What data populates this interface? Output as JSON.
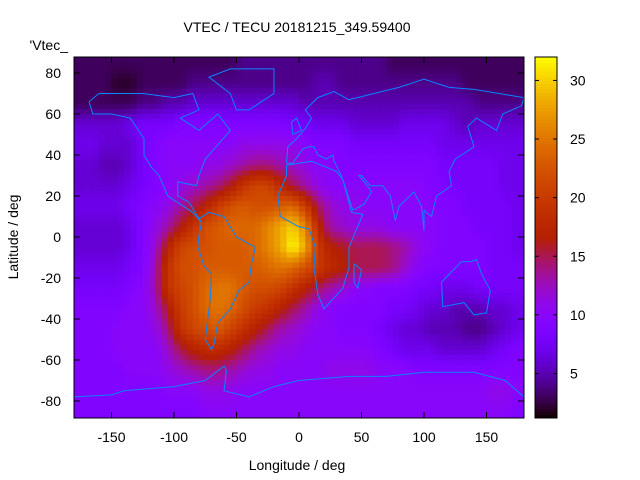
{
  "chart_data": {
    "type": "heatmap",
    "title": "VTEC / TECU 20181215_349.59400",
    "xlabel": "Longitude / deg",
    "ylabel": "Latitude / deg",
    "legend_label": "'Vtec_",
    "legend_position": "top-left",
    "xlim": [
      -180,
      180
    ],
    "ylim": [
      -88,
      88
    ],
    "cbrange": [
      1.2,
      32
    ],
    "xticks": [
      "-150",
      "-100",
      "-50",
      "0",
      "50",
      "100",
      "150"
    ],
    "xtick_values": [
      -150,
      -100,
      -50,
      0,
      50,
      100,
      150
    ],
    "yticks": [
      "80",
      "60",
      "40",
      "20",
      "0",
      "-20",
      "-40",
      "-60",
      "-80"
    ],
    "ytick_values": [
      80,
      60,
      40,
      20,
      0,
      -20,
      -40,
      -60,
      -80
    ],
    "cbticks": [
      "30",
      "25",
      "20",
      "15",
      "10",
      "5"
    ],
    "cbtick_values": [
      30,
      25,
      20,
      15,
      10,
      5
    ],
    "grid_lon": [
      -175,
      -165,
      -155,
      -145,
      -135,
      -125,
      -115,
      -105,
      -95,
      -85,
      -75,
      -65,
      -55,
      -45,
      -35,
      -25,
      -15,
      -5,
      5,
      15,
      25,
      35,
      45,
      55,
      65,
      75,
      85,
      95,
      105,
      115,
      125,
      135,
      145,
      155,
      165,
      175
    ],
    "grid_lat": [
      85,
      75,
      65,
      55,
      45,
      35,
      25,
      15,
      5,
      -5,
      -15,
      -25,
      -35,
      -45,
      -55,
      -65,
      -75,
      -85
    ],
    "values": [
      [
        3,
        3,
        3,
        3,
        3,
        3,
        3,
        3,
        3,
        3,
        3,
        3,
        3,
        4,
        4,
        4,
        4,
        4,
        4,
        4,
        4,
        4,
        4,
        4,
        4,
        3,
        3,
        3,
        3,
        3,
        3,
        3,
        3,
        3,
        3,
        3
      ],
      [
        3,
        3,
        3,
        2,
        2,
        3,
        3,
        3,
        3,
        4,
        4,
        4,
        4,
        4,
        4,
        4,
        4,
        4,
        4,
        5,
        5,
        4,
        4,
        4,
        4,
        4,
        4,
        4,
        4,
        4,
        4,
        3,
        3,
        3,
        3,
        3
      ],
      [
        3,
        3,
        3,
        3,
        3,
        4,
        4,
        5,
        5,
        6,
        6,
        6,
        6,
        6,
        6,
        6,
        6,
        6,
        5,
        5,
        5,
        5,
        5,
        5,
        5,
        5,
        5,
        5,
        5,
        5,
        5,
        5,
        4,
        4,
        4,
        4
      ],
      [
        6,
        6,
        6,
        6,
        7,
        8,
        8,
        8,
        9,
        9,
        9,
        9,
        9,
        9,
        9,
        9,
        9,
        8,
        8,
        7,
        7,
        7,
        6,
        6,
        6,
        6,
        7,
        7,
        7,
        7,
        6,
        5,
        6,
        6,
        6,
        6
      ],
      [
        7,
        7,
        6,
        6,
        6,
        8,
        9,
        10,
        10,
        10,
        10,
        10,
        10,
        11,
        11,
        11,
        11,
        11,
        10,
        9,
        9,
        9,
        8,
        8,
        8,
        8,
        8,
        8,
        8,
        7,
        7,
        7,
        7,
        7,
        7,
        7
      ],
      [
        6,
        6,
        5,
        5,
        6,
        8,
        9,
        10,
        10,
        10,
        11,
        11,
        12,
        13,
        14,
        14,
        13,
        12,
        11,
        10,
        10,
        9,
        9,
        9,
        9,
        9,
        9,
        9,
        9,
        8,
        8,
        8,
        8,
        8,
        7,
        7
      ],
      [
        6,
        6,
        6,
        6,
        7,
        8,
        9,
        10,
        11,
        12,
        13,
        14,
        16,
        19,
        21,
        21,
        18,
        15,
        13,
        11,
        10,
        10,
        10,
        10,
        10,
        10,
        10,
        10,
        9,
        9,
        8,
        8,
        8,
        8,
        7,
        7
      ],
      [
        7,
        7,
        7,
        7,
        8,
        9,
        10,
        11,
        13,
        15,
        17,
        20,
        22,
        23,
        22,
        22,
        23,
        24,
        20,
        15,
        12,
        11,
        11,
        10,
        10,
        10,
        10,
        10,
        10,
        9,
        9,
        8,
        8,
        8,
        8,
        7
      ],
      [
        6,
        6,
        6,
        6,
        7,
        9,
        11,
        13,
        16,
        19,
        22,
        23,
        24,
        24,
        24,
        26,
        28,
        30,
        26,
        18,
        13,
        12,
        11,
        11,
        11,
        10,
        10,
        10,
        10,
        9,
        9,
        9,
        8,
        8,
        8,
        7
      ],
      [
        6,
        6,
        6,
        6,
        7,
        9,
        12,
        17,
        21,
        22,
        22,
        23,
        23,
        23,
        24,
        26,
        28,
        32,
        28,
        20,
        17,
        16,
        15,
        15,
        15,
        14,
        13,
        11,
        10,
        9,
        9,
        9,
        9,
        8,
        8,
        7
      ],
      [
        7,
        7,
        7,
        7,
        8,
        9,
        13,
        19,
        22,
        22,
        23,
        23,
        23,
        23,
        23,
        24,
        25,
        24,
        22,
        20,
        18,
        17,
        15,
        15,
        15,
        14,
        12,
        10,
        9,
        9,
        9,
        9,
        9,
        8,
        8,
        8
      ],
      [
        8,
        8,
        8,
        8,
        9,
        10,
        13,
        19,
        21,
        22,
        24,
        25,
        25,
        23,
        22,
        22,
        21,
        19,
        17,
        15,
        13,
        12,
        10,
        10,
        9,
        9,
        9,
        8,
        8,
        7,
        7,
        7,
        8,
        8,
        8,
        8
      ],
      [
        9,
        9,
        9,
        9,
        10,
        10,
        12,
        16,
        20,
        22,
        24,
        25,
        24,
        22,
        20,
        19,
        17,
        15,
        13,
        11,
        10,
        9,
        9,
        9,
        9,
        8,
        8,
        7,
        6,
        6,
        5,
        5,
        5,
        6,
        6,
        7
      ],
      [
        9,
        9,
        9,
        10,
        10,
        10,
        11,
        14,
        19,
        21,
        22,
        23,
        21,
        19,
        17,
        15,
        13,
        12,
        11,
        10,
        10,
        9,
        9,
        9,
        8,
        7,
        6,
        6,
        5,
        5,
        5,
        4,
        4,
        5,
        6,
        7
      ],
      [
        9,
        9,
        9,
        10,
        10,
        10,
        10,
        12,
        15,
        17,
        18,
        18,
        17,
        15,
        13,
        12,
        11,
        11,
        10,
        10,
        10,
        10,
        10,
        10,
        9,
        8,
        7,
        7,
        7,
        6,
        6,
        6,
        6,
        7,
        8,
        9
      ],
      [
        9,
        9,
        9,
        9,
        10,
        10,
        10,
        11,
        12,
        13,
        14,
        14,
        13,
        12,
        11,
        11,
        10,
        10,
        10,
        10,
        11,
        11,
        11,
        11,
        10,
        10,
        10,
        9,
        9,
        9,
        9,
        9,
        9,
        9,
        9,
        9
      ],
      [
        9,
        9,
        9,
        9,
        9,
        9,
        9,
        10,
        10,
        10,
        11,
        11,
        11,
        10,
        10,
        10,
        10,
        10,
        10,
        10,
        10,
        10,
        10,
        10,
        10,
        10,
        10,
        10,
        10,
        10,
        10,
        10,
        10,
        11,
        11,
        10
      ],
      [
        9,
        9,
        9,
        9,
        9,
        9,
        9,
        9,
        9,
        9,
        10,
        10,
        10,
        10,
        10,
        10,
        10,
        10,
        10,
        10,
        10,
        10,
        10,
        10,
        10,
        10,
        10,
        10,
        10,
        10,
        10,
        10,
        10,
        10,
        10,
        9
      ]
    ],
    "coastline_color": "#0a84ff"
  }
}
